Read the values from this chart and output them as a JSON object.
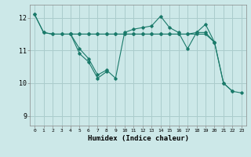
{
  "title": "",
  "xlabel": "Humidex (Indice chaleur)",
  "ylabel": "",
  "background_color": "#cce8e8",
  "grid_color": "#aacccc",
  "line_color": "#1a7a6a",
  "ylim": [
    8.7,
    12.4
  ],
  "xlim": [
    -0.5,
    23.5
  ],
  "yticks": [
    9,
    10,
    11,
    12
  ],
  "xticks": [
    0,
    1,
    2,
    3,
    4,
    5,
    6,
    7,
    8,
    9,
    10,
    11,
    12,
    13,
    14,
    15,
    16,
    17,
    18,
    19,
    20,
    21,
    22,
    23
  ],
  "series": [
    [
      12.1,
      11.55,
      11.5,
      11.5,
      11.5,
      11.05,
      10.75,
      10.25,
      10.4,
      10.15,
      11.55,
      11.65,
      11.7,
      11.75,
      12.05,
      11.7,
      11.55,
      11.05,
      11.55,
      11.55,
      11.25,
      10.0,
      9.75,
      9.7
    ],
    [
      12.1,
      11.55,
      11.5,
      11.5,
      11.5,
      11.5,
      11.5,
      11.5,
      11.5,
      11.5,
      11.5,
      11.5,
      11.5,
      11.5,
      11.5,
      11.5,
      11.5,
      11.5,
      11.5,
      11.5,
      11.25,
      10.0,
      9.75,
      null
    ],
    [
      null,
      null,
      null,
      null,
      11.5,
      11.5,
      11.5,
      11.5,
      11.5,
      11.5,
      11.5,
      11.5,
      11.5,
      11.5,
      11.5,
      11.5,
      11.5,
      11.5,
      11.55,
      11.8,
      11.25,
      null,
      null,
      null
    ],
    [
      null,
      null,
      null,
      null,
      11.5,
      10.9,
      10.65,
      10.15,
      10.35,
      null,
      null,
      null,
      null,
      null,
      null,
      null,
      null,
      null,
      null,
      null,
      null,
      null,
      null,
      null
    ]
  ]
}
